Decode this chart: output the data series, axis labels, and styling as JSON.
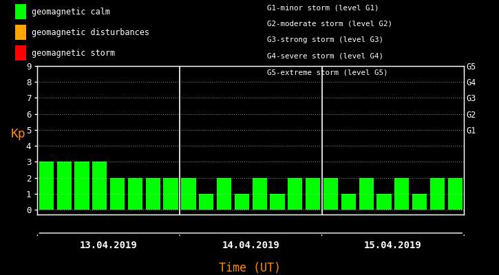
{
  "background_color": "#000000",
  "plot_bg_color": "#000000",
  "bar_color": "#00ff00",
  "axis_color": "#ffffff",
  "text_color": "#ffffff",
  "ylabel_color": "#ff8c00",
  "xlabel_color": "#ff8c00",
  "grid_color": "#ffffff",
  "separator_color": "#ffffff",
  "legend_items": [
    {
      "label": "geomagnetic calm",
      "color": "#00ff00"
    },
    {
      "label": "geomagnetic disturbances",
      "color": "#ffa500"
    },
    {
      "label": "geomagnetic storm",
      "color": "#ff0000"
    }
  ],
  "right_labels": [
    {
      "y": 9,
      "text": "G5"
    },
    {
      "y": 8,
      "text": "G4"
    },
    {
      "y": 7,
      "text": "G3"
    },
    {
      "y": 6,
      "text": "G2"
    },
    {
      "y": 5,
      "text": "G1"
    }
  ],
  "right_legend": [
    "G1-minor storm (level G1)",
    "G2-moderate storm (level G2)",
    "G3-strong storm (level G3)",
    "G4-severe storm (level G4)",
    "G5-extreme storm (level G5)"
  ],
  "days": [
    "13.04.2019",
    "14.04.2019",
    "15.04.2019"
  ],
  "kp_values": [
    [
      3,
      3,
      3,
      3,
      2,
      2,
      2,
      2
    ],
    [
      2,
      1,
      2,
      1,
      2,
      1,
      2,
      2
    ],
    [
      2,
      1,
      2,
      1,
      2,
      1,
      2,
      2
    ]
  ],
  "ylim": [
    0,
    9
  ],
  "yticks": [
    0,
    1,
    2,
    3,
    4,
    5,
    6,
    7,
    8,
    9
  ],
  "figsize": [
    7.25,
    4.0
  ],
  "dpi": 100
}
